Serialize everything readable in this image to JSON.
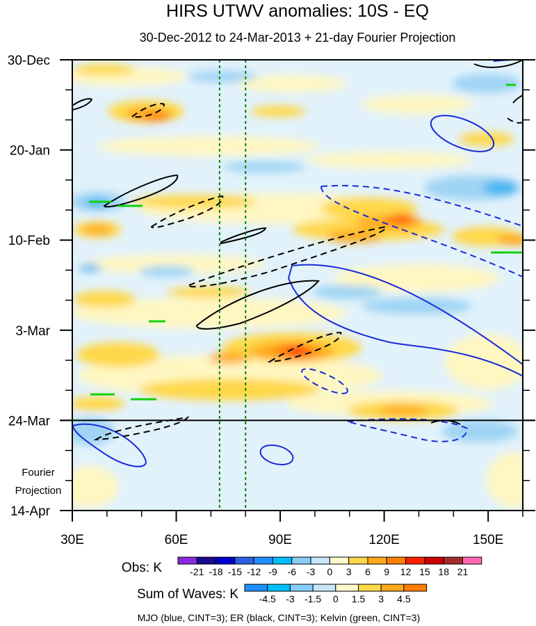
{
  "chart_data": {
    "type": "heatmap",
    "title": "HIRS UTWV anomalies: 10S - EQ",
    "subtitle": "30-Dec-2012 to 24-Mar-2013 + 21-day Fourier Projection",
    "x_ticks": [
      {
        "value": 30,
        "label": "30E"
      },
      {
        "value": 60,
        "label": "60E"
      },
      {
        "value": 90,
        "label": "90E"
      },
      {
        "value": 120,
        "label": "120E"
      },
      {
        "value": 150,
        "label": "150E"
      }
    ],
    "xlim": [
      30,
      160
    ],
    "y_ticks": [
      {
        "day": 0,
        "label": "30-Dec"
      },
      {
        "day": 21,
        "label": "20-Jan"
      },
      {
        "day": 42,
        "label": "10-Feb"
      },
      {
        "day": 63,
        "label": "3-Mar"
      },
      {
        "day": 84,
        "label": "24-Mar"
      },
      {
        "day": 105,
        "label": "14-Apr"
      }
    ],
    "ylim_days": [
      0,
      105
    ],
    "projection_start_day": 84,
    "projection_label": [
      "Fourier",
      "Projection"
    ],
    "reference_longitudes": [
      72.5,
      80
    ],
    "obs_colorbar": {
      "label": "Obs: K",
      "levels": [
        "-21",
        "-18",
        "-15",
        "-12",
        "-9",
        "-6",
        "-3",
        "0",
        "3",
        "6",
        "9",
        "12",
        "15",
        "18",
        "21"
      ],
      "colors": [
        "#8a2be2",
        "#1a0a8c",
        "#0000cd",
        "#3060e0",
        "#1e90ff",
        "#00bfff",
        "#87cefa",
        "#c6e8f8",
        "#fffacd",
        "#ffd84a",
        "#ffaa1a",
        "#ff7f00",
        "#ff2000",
        "#cc0000",
        "#a52a2a",
        "#ff69b4"
      ]
    },
    "waves_colorbar": {
      "label": "Sum of Waves: K",
      "levels": [
        "-4.5",
        "-3",
        "-1.5",
        "0",
        "1.5",
        "3",
        "4.5"
      ],
      "colors": [
        "#1e90ff",
        "#00bfff",
        "#87cefa",
        "#c6e8f8",
        "#fffacd",
        "#ffd84a",
        "#ffaa1a",
        "#ff7f00"
      ]
    },
    "legend_text": "MJO (blue, CINT=3); ER (black, CINT=3); Kelvin (green, CINT=3)",
    "wave_colors": {
      "MJO": "#1a2bd6",
      "ER": "#000000",
      "Kelvin": "#10d010",
      "reference": "#008000"
    }
  }
}
